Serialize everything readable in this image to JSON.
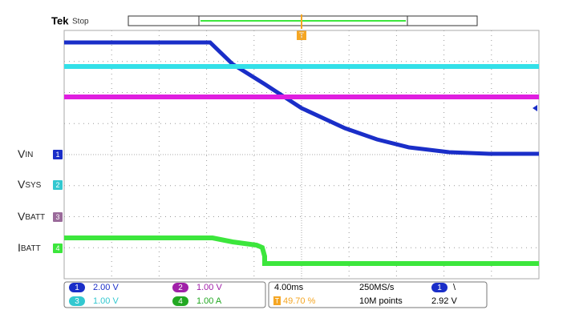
{
  "header": {
    "brand": "Tek",
    "status": "Stop",
    "trigger_marker": "T"
  },
  "channels": [
    {
      "number": "1",
      "label": "V",
      "label_sub": "IN"
    },
    {
      "number": "2",
      "label": "V",
      "label_sub": "SYS"
    },
    {
      "number": "3",
      "label": "V",
      "label_sub": "BATT"
    },
    {
      "number": "4",
      "label": "I",
      "label_sub": "BATT"
    }
  ],
  "readout": {
    "channels": [
      {
        "number": "1",
        "scale": "2.00 V"
      },
      {
        "number": "2",
        "scale": "1.00 V"
      },
      {
        "number": "3",
        "scale": "1.00 V"
      },
      {
        "number": "4",
        "scale": "1.00 A"
      }
    ],
    "timebase": "4.00ms",
    "sample_rate": "250MS/s",
    "record_length": "10M points",
    "trigger_marker": "T",
    "trigger_position": "49.70 %",
    "trigger_channel": "1",
    "trigger_slope": "\\",
    "trigger_level": "2.92 V"
  }
}
